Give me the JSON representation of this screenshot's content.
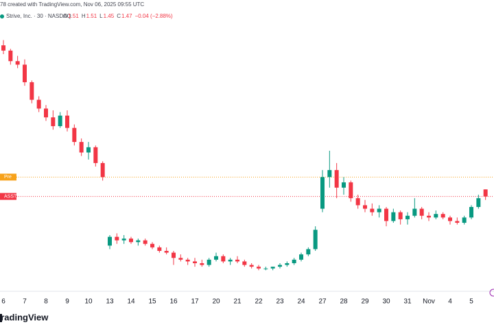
{
  "header": {
    "credit": "78 created with TradingView.com, Nov 06, 2025 09:55 UTC",
    "symbol": "Strive, Inc. · 30 · NASDAQ",
    "ohlc": [
      {
        "label": "O",
        "value": 1.51
      },
      {
        "label": "H",
        "value": 1.51
      },
      {
        "label": "L",
        "value": 1.45
      },
      {
        "label": "C",
        "value": 1.47
      }
    ],
    "change": "−0.04 (−2.88%)"
  },
  "logo": "TradingView",
  "chart_data": {
    "type": "candlestick",
    "up_color": "#089981",
    "down_color": "#f23645",
    "ylim": [
      0.93,
      2.51
    ],
    "price_lines": [
      {
        "label": "Pre",
        "value": 1.58,
        "color": "#f7a21b"
      },
      {
        "label": "ASST",
        "value": 1.47,
        "color": "#f23645"
      }
    ],
    "categories": [
      "6",
      null,
      null,
      "7",
      null,
      null,
      "8",
      null,
      null,
      "9",
      null,
      null,
      "10",
      null,
      null,
      "13",
      null,
      null,
      "14",
      null,
      null,
      "15",
      null,
      null,
      "16",
      null,
      null,
      "17",
      null,
      null,
      "20",
      null,
      null,
      "21",
      null,
      null,
      "22",
      null,
      null,
      "23",
      null,
      null,
      "24",
      null,
      null,
      "27",
      null,
      null,
      "28",
      null,
      null,
      "29",
      null,
      null,
      "30",
      null,
      null,
      "31",
      null,
      null,
      "Nov",
      null,
      null,
      "4",
      null,
      null,
      "5",
      null,
      null
    ],
    "candles": [
      [
        2.33,
        2.36,
        2.28,
        2.3
      ],
      [
        2.3,
        2.31,
        2.22,
        2.24
      ],
      [
        2.24,
        2.27,
        2.2,
        2.22
      ],
      [
        2.22,
        2.25,
        2.1,
        2.12
      ],
      [
        2.12,
        2.13,
        2.0,
        2.02
      ],
      [
        2.02,
        2.04,
        1.95,
        1.97
      ],
      [
        1.97,
        1.99,
        1.9,
        1.92
      ],
      [
        1.92,
        1.96,
        1.85,
        1.87
      ],
      [
        1.87,
        1.95,
        1.86,
        1.93
      ],
      [
        1.93,
        1.96,
        1.84,
        1.86
      ],
      [
        1.86,
        1.88,
        1.76,
        1.78
      ],
      [
        1.78,
        1.8,
        1.7,
        1.72
      ],
      [
        1.72,
        1.78,
        1.68,
        1.75
      ],
      [
        1.75,
        1.76,
        1.64,
        1.66
      ],
      [
        1.66,
        1.67,
        1.56,
        1.58
      ],
      [
        1.19,
        1.25,
        1.17,
        1.24
      ],
      [
        1.24,
        1.26,
        1.2,
        1.22
      ],
      [
        1.22,
        1.25,
        1.2,
        1.23
      ],
      [
        1.23,
        1.24,
        1.2,
        1.21
      ],
      [
        1.21,
        1.23,
        1.19,
        1.22
      ],
      [
        1.22,
        1.23,
        1.19,
        1.2
      ],
      [
        1.2,
        1.21,
        1.17,
        1.18
      ],
      [
        1.18,
        1.19,
        1.15,
        1.16
      ],
      [
        1.16,
        1.18,
        1.14,
        1.15
      ],
      [
        1.15,
        1.16,
        1.08,
        1.12
      ],
      [
        1.12,
        1.14,
        1.1,
        1.11
      ],
      [
        1.11,
        1.12,
        1.08,
        1.1
      ],
      [
        1.1,
        1.12,
        1.07,
        1.09
      ],
      [
        1.09,
        1.11,
        1.07,
        1.08
      ],
      [
        1.08,
        1.12,
        1.07,
        1.11
      ],
      [
        1.11,
        1.15,
        1.1,
        1.13
      ],
      [
        1.13,
        1.14,
        1.09,
        1.1
      ],
      [
        1.1,
        1.12,
        1.08,
        1.11
      ],
      [
        1.11,
        1.13,
        1.09,
        1.1
      ],
      [
        1.1,
        1.11,
        1.07,
        1.08
      ],
      [
        1.08,
        1.09,
        1.06,
        1.07
      ],
      [
        1.07,
        1.08,
        1.05,
        1.06
      ],
      [
        1.06,
        1.07,
        1.05,
        1.06
      ],
      [
        1.06,
        1.07,
        1.05,
        1.07
      ],
      [
        1.07,
        1.09,
        1.06,
        1.08
      ],
      [
        1.08,
        1.1,
        1.07,
        1.09
      ],
      [
        1.09,
        1.12,
        1.08,
        1.11
      ],
      [
        1.11,
        1.15,
        1.1,
        1.14
      ],
      [
        1.14,
        1.18,
        1.13,
        1.17
      ],
      [
        1.17,
        1.3,
        1.16,
        1.28
      ],
      [
        1.4,
        1.62,
        1.38,
        1.58
      ],
      [
        1.58,
        1.73,
        1.52,
        1.62
      ],
      [
        1.62,
        1.66,
        1.46,
        1.52
      ],
      [
        1.52,
        1.58,
        1.48,
        1.55
      ],
      [
        1.55,
        1.56,
        1.44,
        1.46
      ],
      [
        1.46,
        1.48,
        1.4,
        1.42
      ],
      [
        1.42,
        1.45,
        1.38,
        1.4
      ],
      [
        1.4,
        1.43,
        1.36,
        1.38
      ],
      [
        1.38,
        1.42,
        1.35,
        1.4
      ],
      [
        1.4,
        1.41,
        1.3,
        1.33
      ],
      [
        1.33,
        1.4,
        1.32,
        1.38
      ],
      [
        1.38,
        1.39,
        1.31,
        1.34
      ],
      [
        1.34,
        1.38,
        1.31,
        1.36
      ],
      [
        1.36,
        1.46,
        1.35,
        1.4
      ],
      [
        1.4,
        1.41,
        1.34,
        1.36
      ],
      [
        1.36,
        1.38,
        1.33,
        1.35
      ],
      [
        1.35,
        1.39,
        1.34,
        1.37
      ],
      [
        1.37,
        1.38,
        1.34,
        1.35
      ],
      [
        1.35,
        1.36,
        1.31,
        1.33
      ],
      [
        1.33,
        1.35,
        1.31,
        1.32
      ],
      [
        1.32,
        1.36,
        1.31,
        1.35
      ],
      [
        1.35,
        1.42,
        1.34,
        1.41
      ],
      [
        1.41,
        1.48,
        1.4,
        1.46
      ],
      [
        1.51,
        1.51,
        1.45,
        1.47
      ]
    ]
  }
}
